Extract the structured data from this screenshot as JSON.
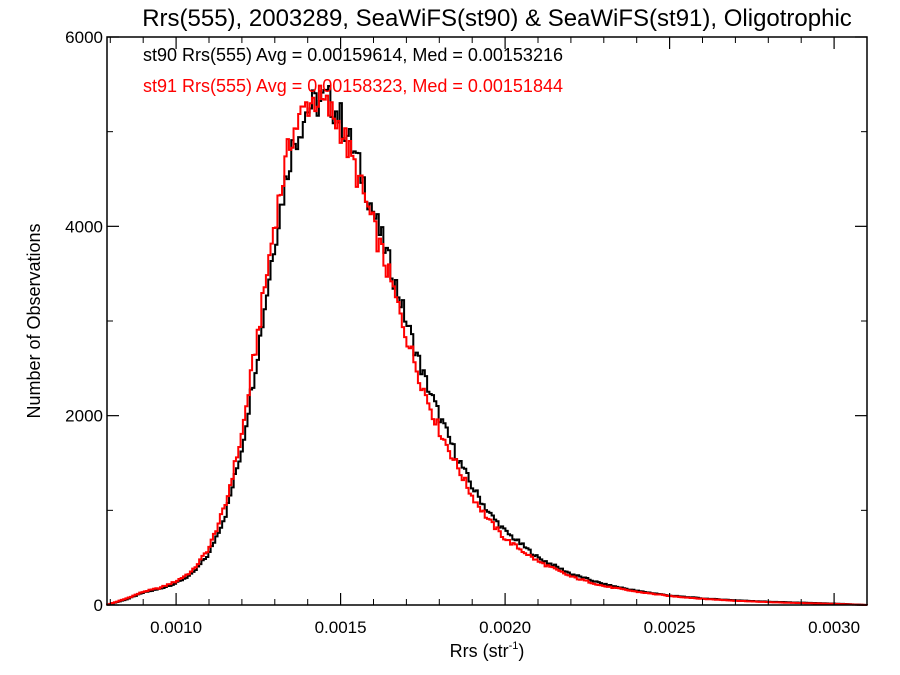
{
  "chart_data": {
    "type": "line",
    "title": "Rrs(555), 2003289, SeaWiFS(st90) & SeaWiFS(st91), Oligotrophic",
    "xlabel_main": "Rrs (str",
    "xlabel_sup": "-1",
    "xlabel_close": ")",
    "ylabel": "Number of Observations",
    "xlim": [
      0.00079,
      0.0031
    ],
    "ylim": [
      0,
      6000
    ],
    "xticks": [
      0.001,
      0.0015,
      0.002,
      0.0025,
      0.003
    ],
    "xtick_labels": [
      "0.0010",
      "0.0015",
      "0.0020",
      "0.0025",
      "0.0030"
    ],
    "yticks": [
      0,
      2000,
      4000,
      6000
    ],
    "ytick_labels": [
      "0",
      "2000",
      "4000",
      "6000"
    ],
    "annotations": [
      "st90 Rrs(555) Avg = 0.00159614, Med = 0.00153216",
      "st91 Rrs(555) Avg = 0.00158323, Med = 0.00151844"
    ],
    "grid": false,
    "series": [
      {
        "color": "#000000",
        "x": [
          0.00079,
          0.00085,
          0.0009,
          0.00095,
          0.001,
          0.00105,
          0.0011,
          0.00115,
          0.0012,
          0.00125,
          0.0013,
          0.00135,
          0.0014,
          0.00143,
          0.00146,
          0.0015,
          0.00155,
          0.0016,
          0.00165,
          0.0017,
          0.00175,
          0.0018,
          0.00185,
          0.0019,
          0.00195,
          0.002,
          0.0021,
          0.0022,
          0.0023,
          0.0024,
          0.0025,
          0.0026,
          0.0027,
          0.0028,
          0.0029,
          0.003,
          0.0031
        ],
        "y": [
          0,
          60,
          130,
          170,
          230,
          330,
          540,
          950,
          1650,
          2700,
          3850,
          4800,
          5250,
          5300,
          5350,
          5150,
          4700,
          4150,
          3600,
          3000,
          2450,
          2000,
          1600,
          1250,
          980,
          780,
          500,
          330,
          220,
          150,
          100,
          70,
          50,
          35,
          25,
          15,
          0
        ]
      },
      {
        "color": "#ff0000",
        "x": [
          0.00079,
          0.00085,
          0.0009,
          0.00095,
          0.001,
          0.00105,
          0.0011,
          0.00115,
          0.0012,
          0.00125,
          0.0013,
          0.00135,
          0.0014,
          0.00143,
          0.00146,
          0.0015,
          0.00155,
          0.0016,
          0.00165,
          0.0017,
          0.00175,
          0.0018,
          0.00185,
          0.0019,
          0.00195,
          0.002,
          0.0021,
          0.0022,
          0.0023,
          0.0024,
          0.0025,
          0.0026,
          0.0027,
          0.0028,
          0.0029,
          0.003,
          0.0031
        ],
        "y": [
          0,
          70,
          140,
          180,
          250,
          360,
          600,
          1050,
          1800,
          2900,
          4050,
          4950,
          5300,
          5350,
          5250,
          5050,
          4550,
          4000,
          3450,
          2850,
          2300,
          1850,
          1500,
          1150,
          900,
          700,
          460,
          300,
          200,
          140,
          95,
          65,
          45,
          30,
          20,
          12,
          0
        ]
      }
    ]
  }
}
